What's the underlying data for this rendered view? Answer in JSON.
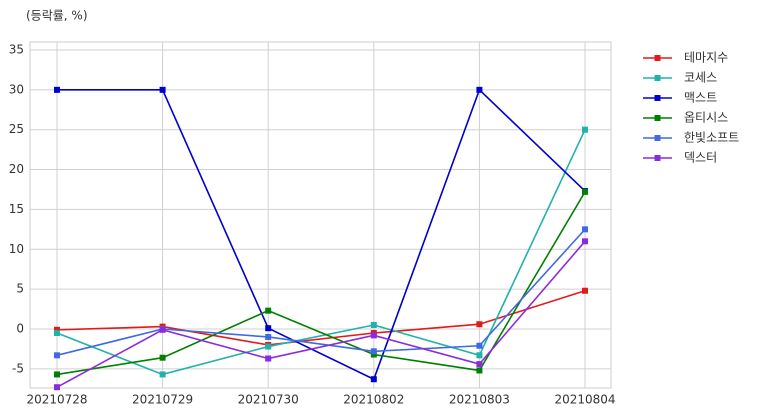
{
  "chart_data": {
    "type": "line",
    "title": "(등락률, %)",
    "categories": [
      "20210728",
      "20210729",
      "20210730",
      "20210802",
      "20210803",
      "20210804"
    ],
    "series": [
      {
        "name": "테마지수",
        "color": "#e31a1c",
        "values": [
          -0.1,
          0.3,
          -2.0,
          -0.5,
          0.6,
          4.8
        ]
      },
      {
        "name": "코세스",
        "color": "#20b2aa",
        "values": [
          -0.5,
          -5.7,
          -2.2,
          0.5,
          -3.3,
          25.0
        ]
      },
      {
        "name": "맥스트",
        "color": "#0000cd",
        "values": [
          30,
          30,
          0.1,
          -6.3,
          30,
          17.3
        ]
      },
      {
        "name": "옵티시스",
        "color": "#008000",
        "values": [
          -5.7,
          -3.6,
          2.3,
          -3.2,
          -5.2,
          17.2
        ]
      },
      {
        "name": "한빛소프트",
        "color": "#4169e1",
        "values": [
          -3.3,
          0,
          -1.0,
          -2.8,
          -2.1,
          12.5
        ]
      },
      {
        "name": "덱스터",
        "color": "#8a2be2",
        "values": [
          -7.3,
          -0.1,
          -3.7,
          -0.8,
          -4.4,
          11.0
        ]
      }
    ],
    "ylim": [
      -7.4,
      36
    ],
    "yticks": [
      -5,
      0,
      5,
      10,
      15,
      20,
      25,
      30,
      35
    ],
    "grid": true,
    "legend": "outside right"
  }
}
